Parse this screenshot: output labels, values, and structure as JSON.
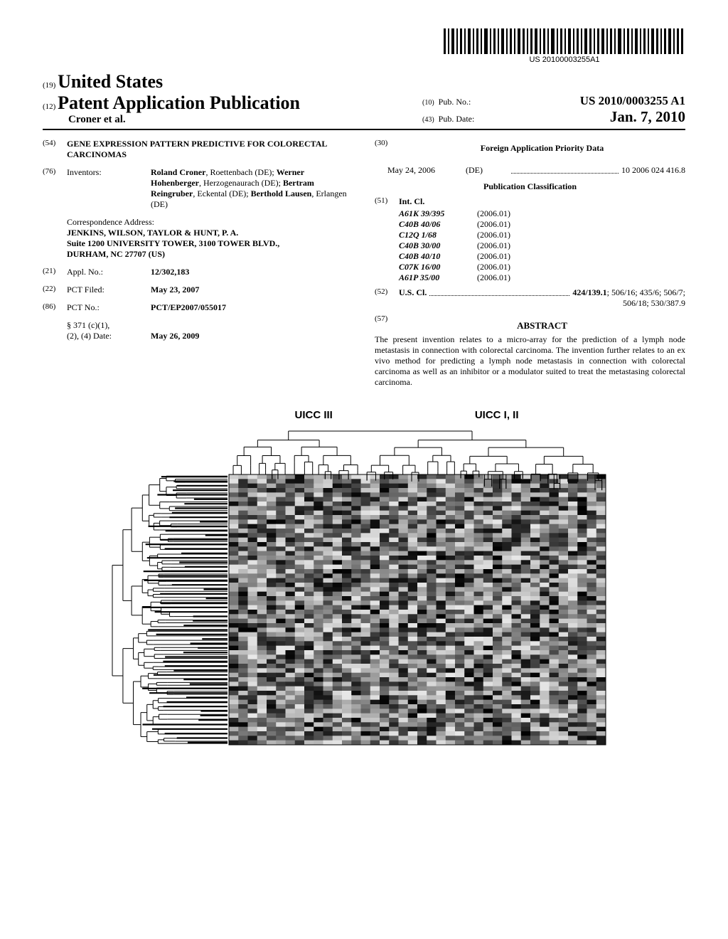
{
  "barcode": {
    "text": "US 20100003255A1"
  },
  "header": {
    "country_code": "(19)",
    "country": "United States",
    "pub_type_code": "(12)",
    "pub_type": "Patent Application Publication",
    "authors": "Croner et al.",
    "pub_no_code": "(10)",
    "pub_no_label": "Pub. No.:",
    "pub_no": "US 2010/0003255 A1",
    "pub_date_code": "(43)",
    "pub_date_label": "Pub. Date:",
    "pub_date": "Jan. 7, 2010"
  },
  "left_col": {
    "title_code": "(54)",
    "title": "GENE EXPRESSION PATTERN PREDICTIVE FOR COLORECTAL CARCINOMAS",
    "inventors_code": "(76)",
    "inventors_label": "Inventors:",
    "inventors": [
      {
        "name": "Roland Croner",
        "loc": "Roettenbach (DE)"
      },
      {
        "name": "Werner Hohenberger",
        "loc": "Herzogenaurach (DE)"
      },
      {
        "name": "Bertram Reingruber",
        "loc": "Eckental (DE)"
      },
      {
        "name": "Berthold Lausen",
        "loc": "Erlangen (DE)"
      }
    ],
    "corr_label": "Correspondence Address:",
    "corr_lines": [
      "JENKINS, WILSON, TAYLOR & HUNT, P. A.",
      "Suite 1200 UNIVERSITY TOWER, 3100 TOWER BLVD.,",
      "DURHAM, NC 27707 (US)"
    ],
    "appl_code": "(21)",
    "appl_label": "Appl. No.:",
    "appl_no": "12/302,183",
    "pct_filed_code": "(22)",
    "pct_filed_label": "PCT Filed:",
    "pct_filed": "May 23, 2007",
    "pct_no_code": "(86)",
    "pct_no_label": "PCT No.:",
    "pct_no": "PCT/EP2007/055017",
    "s371_label": "§ 371 (c)(1),\n(2), (4) Date:",
    "s371_date": "May 26, 2009"
  },
  "right_col": {
    "foreign_code": "(30)",
    "foreign_title": "Foreign Application Priority Data",
    "foreign_date": "May 24, 2006",
    "foreign_country": "(DE)",
    "foreign_num": "10 2006 024 416.8",
    "pubclass_title": "Publication Classification",
    "intcl_code": "(51)",
    "intcl_label": "Int. Cl.",
    "intcl": [
      {
        "cls": "A61K 39/395",
        "yr": "(2006.01)"
      },
      {
        "cls": "C40B 40/06",
        "yr": "(2006.01)"
      },
      {
        "cls": "C12Q 1/68",
        "yr": "(2006.01)"
      },
      {
        "cls": "C40B 30/00",
        "yr": "(2006.01)"
      },
      {
        "cls": "C40B 40/10",
        "yr": "(2006.01)"
      },
      {
        "cls": "C07K 16/00",
        "yr": "(2006.01)"
      },
      {
        "cls": "A61P 35/00",
        "yr": "(2006.01)"
      }
    ],
    "uscl_code": "(52)",
    "uscl_label": "U.S. Cl.",
    "uscl_main": "424/139.1",
    "uscl_rest": "; 506/16; 435/6; 506/7;",
    "uscl_line2": "506/18; 530/387.9",
    "abstract_code": "(57)",
    "abstract_title": "ABSTRACT",
    "abstract_text": "The present invention relates to a micro-array for the prediction of a lymph node metastasis in connection with colorectal carcinoma. The invention further relates to an ex vivo method for predicting a lymph node metastasis in connection with colorectal carcinoma as well as an inhibitor or a modulator suited to treat the metastasing colorectal carcinoma."
  },
  "figure": {
    "label_left": "UICC III",
    "label_right": "UICC I, II",
    "heatmap": {
      "type": "heatmap-dendrogram",
      "rows": 60,
      "cols": 40,
      "row_dendrogram_width": 150,
      "col_dendrogram_height": 55,
      "heatmap_width": 530,
      "heatmap_height": 380,
      "grayscale_min": "#000000",
      "grayscale_max": "#e8e8e8",
      "background": "#ffffff",
      "dendrogram_color": "#000000"
    }
  }
}
